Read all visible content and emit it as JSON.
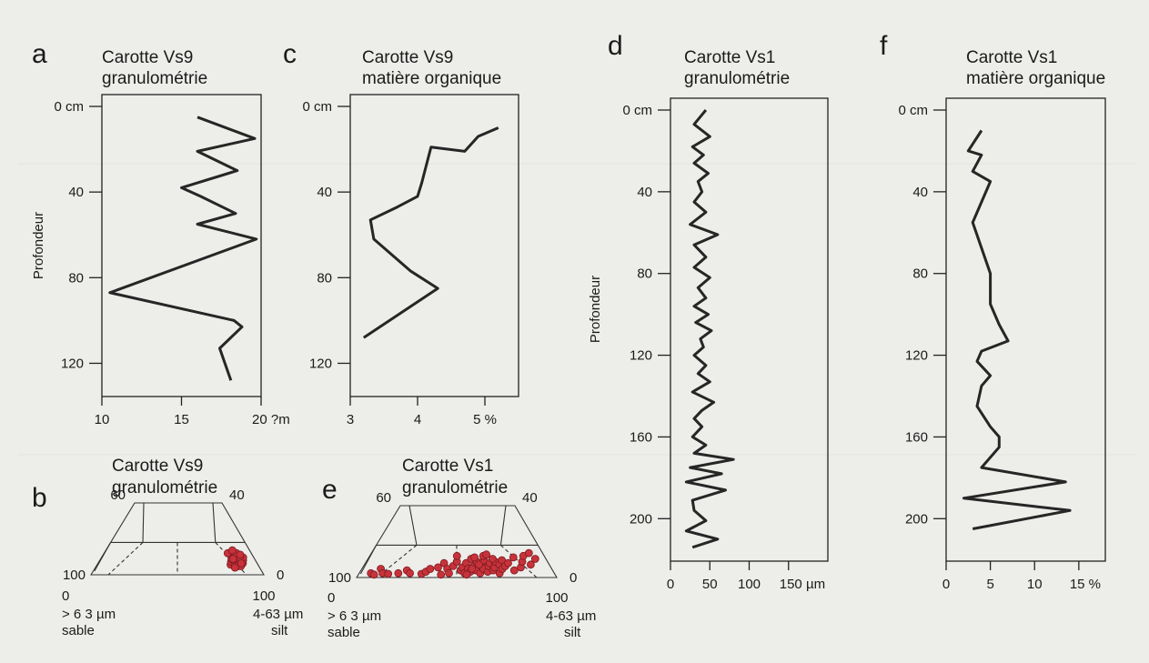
{
  "panels": {
    "a": {
      "letter": "a",
      "title1": "Carotte Vs9",
      "title2": "granulométrie",
      "ylabel": "Profondeur"
    },
    "b": {
      "letter": "b",
      "title1": "Carotte Vs9",
      "title2": "granulométrie"
    },
    "c": {
      "letter": "c",
      "title1": "Carotte Vs9",
      "title2": "matière organique"
    },
    "d": {
      "letter": "d",
      "title1": "Carotte Vs1",
      "title2": "granulométrie",
      "ylabel": "Profondeur"
    },
    "e": {
      "letter": "e",
      "title1": "Carotte Vs1",
      "title2": "granulométrie"
    },
    "f": {
      "letter": "f",
      "title1": "Carotte Vs1",
      "title2": "matière organique"
    }
  },
  "chart_data": [
    {
      "id": "a",
      "type": "line",
      "orientation": "depth-profile",
      "title": "Carotte Vs9 granulométrie",
      "ylabel": "Profondeur",
      "xlim": [
        10,
        20
      ],
      "ylim": [
        0,
        130
      ],
      "xticks": [
        10,
        15,
        20
      ],
      "xtick_labels": [
        "10",
        "15",
        "20 ?m"
      ],
      "yticks": [
        0,
        40,
        80,
        120
      ],
      "ytick_labels": [
        "0 cm",
        "40",
        "80",
        "120"
      ],
      "points": [
        [
          16,
          5
        ],
        [
          19.6,
          15
        ],
        [
          16,
          21
        ],
        [
          18.5,
          30
        ],
        [
          15,
          38
        ],
        [
          16.2,
          42
        ],
        [
          18.4,
          50
        ],
        [
          16,
          55
        ],
        [
          19.7,
          62
        ],
        [
          10.5,
          87
        ],
        [
          18.3,
          100
        ],
        [
          18.8,
          103
        ],
        [
          17.4,
          113
        ],
        [
          18.1,
          128
        ]
      ]
    },
    {
      "id": "c",
      "type": "line",
      "orientation": "depth-profile",
      "title": "Carotte Vs9 matière organique",
      "xlim": [
        3,
        5.5
      ],
      "ylim": [
        0,
        130
      ],
      "xticks": [
        3,
        4,
        5
      ],
      "xtick_labels": [
        "3",
        "4",
        "5 %"
      ],
      "yticks": [
        0,
        40,
        80,
        120
      ],
      "ytick_labels": [
        "0 cm",
        "40",
        "80",
        "120"
      ],
      "points": [
        [
          5.2,
          10
        ],
        [
          4.9,
          14
        ],
        [
          4.7,
          21
        ],
        [
          4.2,
          19
        ],
        [
          4.06,
          36
        ],
        [
          4.0,
          42
        ],
        [
          3.7,
          47
        ],
        [
          3.3,
          53
        ],
        [
          3.35,
          62
        ],
        [
          3.9,
          77
        ],
        [
          4.3,
          85
        ],
        [
          3.2,
          108
        ]
      ]
    },
    {
      "id": "d",
      "type": "line",
      "orientation": "depth-profile",
      "title": "Carotte Vs1 granulométrie",
      "ylabel": "Profondeur",
      "xlim": [
        0,
        200
      ],
      "ylim": [
        0,
        215
      ],
      "xticks": [
        0,
        50,
        100,
        150
      ],
      "xtick_labels": [
        "0",
        "50",
        "100",
        "150 µm"
      ],
      "yticks": [
        0,
        40,
        80,
        120,
        160,
        200
      ],
      "ytick_labels": [
        "0 cm",
        "40",
        "80",
        "120",
        "160",
        "200"
      ],
      "points": [
        [
          45,
          0
        ],
        [
          30,
          7
        ],
        [
          50,
          13
        ],
        [
          28,
          18
        ],
        [
          42,
          22
        ],
        [
          30,
          26
        ],
        [
          48,
          31
        ],
        [
          35,
          35
        ],
        [
          40,
          40
        ],
        [
          30,
          45
        ],
        [
          45,
          50
        ],
        [
          25,
          56
        ],
        [
          60,
          61
        ],
        [
          30,
          66
        ],
        [
          45,
          72
        ],
        [
          30,
          77
        ],
        [
          50,
          82
        ],
        [
          35,
          87
        ],
        [
          45,
          92
        ],
        [
          30,
          96
        ],
        [
          48,
          100
        ],
        [
          32,
          104
        ],
        [
          52,
          108
        ],
        [
          38,
          112
        ],
        [
          42,
          116
        ],
        [
          30,
          120
        ],
        [
          45,
          125
        ],
        [
          35,
          129
        ],
        [
          50,
          133
        ],
        [
          28,
          138
        ],
        [
          55,
          143
        ],
        [
          40,
          147
        ],
        [
          30,
          151
        ],
        [
          40,
          155
        ],
        [
          28,
          160
        ],
        [
          45,
          164
        ],
        [
          30,
          168
        ],
        [
          80,
          171
        ],
        [
          25,
          175
        ],
        [
          65,
          178
        ],
        [
          20,
          182
        ],
        [
          70,
          186
        ],
        [
          28,
          191
        ],
        [
          30,
          196
        ],
        [
          45,
          201
        ],
        [
          20,
          206
        ],
        [
          60,
          210
        ],
        [
          28,
          214
        ]
      ]
    },
    {
      "id": "f",
      "type": "line",
      "orientation": "depth-profile",
      "title": "Carotte Vs1 matière organique",
      "xlim": [
        0,
        18
      ],
      "ylim": [
        0,
        215
      ],
      "xticks": [
        0,
        5,
        10,
        15
      ],
      "xtick_labels": [
        "0",
        "5",
        "10",
        "15 %"
      ],
      "yticks": [
        0,
        40,
        80,
        120,
        160,
        200
      ],
      "ytick_labels": [
        "0 cm",
        "40",
        "80",
        "120",
        "160",
        "200"
      ],
      "points": [
        [
          4,
          10
        ],
        [
          2.5,
          20
        ],
        [
          4.0,
          22
        ],
        [
          3.0,
          30
        ],
        [
          5.0,
          35
        ],
        [
          3.0,
          55
        ],
        [
          5.0,
          80
        ],
        [
          5.0,
          95
        ],
        [
          6.0,
          105
        ],
        [
          7.0,
          113
        ],
        [
          4.0,
          118
        ],
        [
          3.5,
          123
        ],
        [
          5.0,
          130
        ],
        [
          4.0,
          135
        ],
        [
          3.5,
          145
        ],
        [
          5.0,
          155
        ],
        [
          6.0,
          160
        ],
        [
          6.0,
          165
        ],
        [
          4.0,
          175
        ],
        [
          13.5,
          182
        ],
        [
          2.0,
          190
        ],
        [
          14.0,
          196
        ],
        [
          3.0,
          205
        ]
      ]
    },
    {
      "id": "b",
      "type": "scatter",
      "subtype": "ternary-trapezoid",
      "title": "Carotte Vs9 granulométrie",
      "corner_labels": {
        "top_left": "60",
        "top_right": "40",
        "left": "100",
        "right": "0",
        "bottom_left": "0",
        "bottom_right": "100"
      },
      "axis_labels": {
        "left_1": "> 6 3 µm",
        "left_2": "sable",
        "right_1": "4-63 µm",
        "right_2": "silt"
      },
      "silt_percent": [
        83,
        84,
        85,
        86,
        86,
        87,
        88,
        88,
        89,
        90,
        90,
        91,
        92,
        93,
        84,
        87,
        89,
        91,
        85,
        88,
        90,
        86,
        92
      ],
      "height_fraction": [
        0.14,
        0.18,
        0.22,
        0.16,
        0.28,
        0.2,
        0.14,
        0.26,
        0.18,
        0.22,
        0.3,
        0.16,
        0.2,
        0.24,
        0.3,
        0.12,
        0.12,
        0.24,
        0.1,
        0.34,
        0.16,
        0.22,
        0.28
      ]
    },
    {
      "id": "e",
      "type": "scatter",
      "subtype": "ternary-trapezoid",
      "title": "Carotte Vs1 granulométrie",
      "corner_labels": {
        "top_left": "60",
        "top_right": "40",
        "left": "100",
        "right": "0",
        "bottom_left": "0",
        "bottom_right": "100"
      },
      "axis_labels": {
        "left_1": "> 6 3 µm",
        "left_2": "sable",
        "right_1": "4-63 µm",
        "right_2": "silt"
      },
      "silt_percent": [
        6,
        8,
        10,
        12,
        15,
        20,
        24,
        26,
        32,
        34,
        36,
        40,
        42,
        43,
        45,
        46,
        48,
        50,
        52,
        53,
        54,
        55,
        56,
        57,
        58,
        59,
        60,
        61,
        62,
        63,
        64,
        65,
        66,
        67,
        68,
        69,
        70,
        71,
        72,
        73,
        74,
        75,
        76,
        78,
        80,
        82,
        84,
        86,
        88,
        90,
        92,
        94,
        50,
        55,
        60,
        65,
        70,
        58,
        62,
        67
      ],
      "height_fraction": [
        0.06,
        0.04,
        0.12,
        0.06,
        0.05,
        0.06,
        0.1,
        0.06,
        0.05,
        0.08,
        0.12,
        0.14,
        0.04,
        0.2,
        0.12,
        0.06,
        0.16,
        0.22,
        0.1,
        0.14,
        0.06,
        0.2,
        0.12,
        0.08,
        0.26,
        0.16,
        0.1,
        0.22,
        0.06,
        0.18,
        0.12,
        0.24,
        0.08,
        0.16,
        0.2,
        0.1,
        0.14,
        0.22,
        0.06,
        0.18,
        0.12,
        0.24,
        0.16,
        0.2,
        0.1,
        0.28,
        0.14,
        0.22,
        0.3,
        0.18,
        0.34,
        0.26,
        0.3,
        0.04,
        0.28,
        0.3,
        0.26,
        0.12,
        0.18,
        0.32
      ]
    }
  ]
}
